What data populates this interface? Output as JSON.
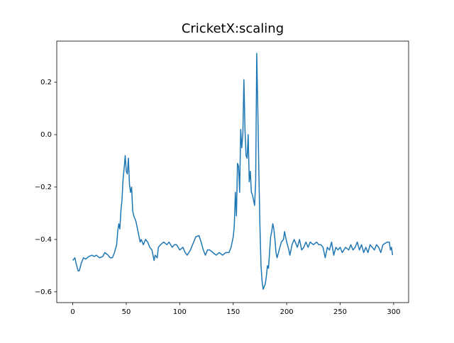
{
  "chart_data": {
    "type": "line",
    "title": "CricketX:scaling",
    "x": [
      0,
      2,
      3,
      5,
      6,
      8,
      10,
      12,
      15,
      18,
      20,
      22,
      25,
      28,
      30,
      33,
      35,
      37,
      39,
      41,
      42,
      43,
      44,
      45,
      46,
      47,
      48,
      49,
      50,
      51,
      52,
      53,
      54,
      55,
      56,
      57,
      59,
      61,
      63,
      64,
      66,
      68,
      70,
      72,
      74,
      75,
      76,
      77,
      79,
      80,
      82,
      85,
      88,
      90,
      93,
      95,
      97,
      100,
      103,
      105,
      107,
      110,
      112,
      115,
      118,
      120,
      122,
      124,
      126,
      128,
      131,
      134,
      137,
      140,
      143,
      146,
      148,
      150,
      151,
      152,
      153,
      154,
      155,
      156,
      157,
      158,
      159,
      160,
      161,
      162,
      163,
      164,
      165,
      166,
      167,
      168,
      169,
      170,
      171,
      172,
      173,
      174,
      175,
      176,
      177,
      178,
      179,
      180,
      181,
      182,
      183,
      184,
      185,
      186,
      187,
      188,
      189,
      190,
      191,
      193,
      195,
      197,
      198,
      199,
      200,
      202,
      203,
      205,
      207,
      210,
      212,
      214,
      216,
      218,
      220,
      222,
      225,
      228,
      230,
      232,
      234,
      236,
      238,
      240,
      242,
      244,
      246,
      248,
      250,
      252,
      255,
      258,
      260,
      262,
      264,
      266,
      268,
      270,
      272,
      274,
      276,
      278,
      280,
      282,
      284,
      286,
      288,
      290,
      292,
      294,
      296,
      297,
      298,
      299
    ],
    "series": [
      {
        "color": "#1f77b4",
        "values": [
          -0.48,
          -0.47,
          -0.49,
          -0.52,
          -0.52,
          -0.49,
          -0.47,
          -0.475,
          -0.465,
          -0.46,
          -0.465,
          -0.46,
          -0.47,
          -0.465,
          -0.45,
          -0.46,
          -0.47,
          -0.47,
          -0.45,
          -0.42,
          -0.37,
          -0.34,
          -0.36,
          -0.29,
          -0.25,
          -0.17,
          -0.13,
          -0.08,
          -0.14,
          -0.15,
          -0.09,
          -0.19,
          -0.22,
          -0.2,
          -0.29,
          -0.31,
          -0.33,
          -0.37,
          -0.41,
          -0.4,
          -0.42,
          -0.4,
          -0.41,
          -0.43,
          -0.44,
          -0.46,
          -0.48,
          -0.46,
          -0.47,
          -0.43,
          -0.42,
          -0.41,
          -0.42,
          -0.41,
          -0.43,
          -0.42,
          -0.42,
          -0.44,
          -0.43,
          -0.45,
          -0.46,
          -0.44,
          -0.42,
          -0.39,
          -0.385,
          -0.41,
          -0.44,
          -0.46,
          -0.44,
          -0.44,
          -0.45,
          -0.46,
          -0.45,
          -0.46,
          -0.45,
          -0.45,
          -0.43,
          -0.39,
          -0.35,
          -0.22,
          -0.31,
          -0.11,
          -0.12,
          -0.22,
          0.02,
          -0.05,
          0.0,
          0.21,
          0.02,
          -0.08,
          -0.09,
          0.0,
          -0.18,
          -0.14,
          -0.22,
          -0.23,
          -0.25,
          -0.27,
          -0.18,
          0.31,
          0.1,
          -0.15,
          -0.35,
          -0.5,
          -0.56,
          -0.59,
          -0.58,
          -0.57,
          -0.54,
          -0.5,
          -0.51,
          -0.45,
          -0.39,
          -0.37,
          -0.34,
          -0.36,
          -0.4,
          -0.45,
          -0.47,
          -0.44,
          -0.41,
          -0.4,
          -0.37,
          -0.39,
          -0.41,
          -0.44,
          -0.46,
          -0.42,
          -0.4,
          -0.43,
          -0.4,
          -0.44,
          -0.43,
          -0.41,
          -0.43,
          -0.41,
          -0.42,
          -0.41,
          -0.42,
          -0.42,
          -0.43,
          -0.47,
          -0.43,
          -0.44,
          -0.41,
          -0.46,
          -0.43,
          -0.44,
          -0.43,
          -0.45,
          -0.43,
          -0.44,
          -0.42,
          -0.44,
          -0.43,
          -0.41,
          -0.44,
          -0.42,
          -0.45,
          -0.43,
          -0.45,
          -0.42,
          -0.43,
          -0.44,
          -0.42,
          -0.43,
          -0.45,
          -0.42,
          -0.415,
          -0.41,
          -0.41,
          -0.44,
          -0.43,
          -0.46
        ]
      }
    ],
    "xlim": [
      -15,
      314
    ],
    "ylim": [
      -0.641,
      0.357
    ],
    "xticks": [
      0,
      50,
      100,
      150,
      200,
      250,
      300
    ],
    "yticks": [
      {
        "value": -0.6,
        "label": "−0.6"
      },
      {
        "value": -0.4,
        "label": "−0.4"
      },
      {
        "value": -0.2,
        "label": "−0.2"
      },
      {
        "value": 0,
        "label": "0.0"
      },
      0.2
    ]
  }
}
